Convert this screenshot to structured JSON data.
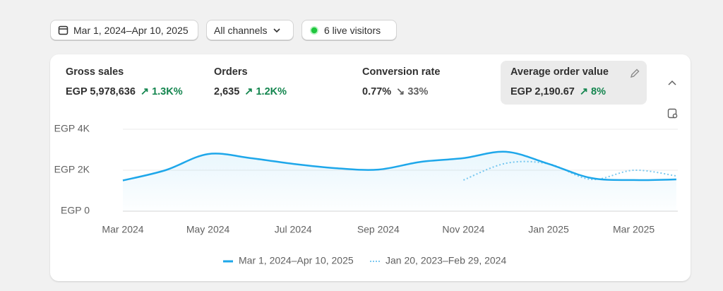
{
  "filters": {
    "date_range": "Mar 1, 2024–Apr 10, 2025",
    "channels": "All channels",
    "live_visitors": "6 live visitors"
  },
  "metrics": [
    {
      "label": "Gross sales",
      "value": "EGP 5,978,636",
      "change": "1.3K%"
    },
    {
      "label": "Orders",
      "value": "2,635",
      "change": "1.2K%"
    },
    {
      "label": "Conversion rate",
      "value": "0.77%",
      "change": "33%"
    },
    {
      "label": "Average order value",
      "value": "EGP 2,190.67",
      "change": "8%"
    }
  ],
  "chart_data": {
    "type": "line",
    "categories": [
      "Mar 2024",
      null,
      "May 2024",
      null,
      "Jul 2024",
      null,
      "Sep 2024",
      null,
      "Nov 2024",
      null,
      "Jan 2025",
      null,
      "Mar 2025",
      null
    ],
    "series": [
      {
        "name": "Mar 1, 2024–Apr 10, 2025",
        "color": "#1ea7ea",
        "values": [
          1500,
          2000,
          2790,
          2590,
          2310,
          2100,
          2030,
          2410,
          2590,
          2900,
          2310,
          1620,
          1520,
          1550
        ]
      },
      {
        "name": "Jan 20, 2023–Feb 29, 2024",
        "color": "#7cc9f0",
        "values": [
          null,
          null,
          null,
          null,
          null,
          null,
          null,
          null,
          1520,
          2340,
          2310,
          1550,
          2000,
          1720
        ]
      }
    ],
    "ylim": [
      0,
      4000
    ],
    "yticks": [
      {
        "value": 0,
        "label": "EGP 0"
      },
      {
        "value": 2000,
        "label": "EGP 2K"
      },
      {
        "value": 4000,
        "label": "EGP 4K"
      }
    ],
    "grid": true
  }
}
